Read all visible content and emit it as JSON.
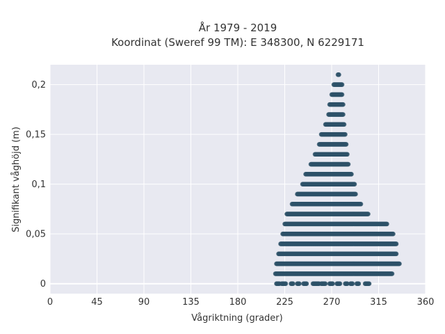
{
  "chart_data": {
    "type": "scatter",
    "title_line1": "År 1979 - 2019",
    "title_line2": "Koordinat (Sweref 99 TM): E 348300, N 6229171",
    "xlabel": "Vågriktning (grader)",
    "ylabel": "Signifikant våghöjd (m)",
    "xlim": [
      0,
      360
    ],
    "ylim": [
      -0.01,
      0.22
    ],
    "xticks": [
      0,
      45,
      90,
      135,
      180,
      225,
      270,
      315,
      360
    ],
    "xtick_labels": [
      "0",
      "45",
      "90",
      "135",
      "180",
      "225",
      "270",
      "315",
      "360"
    ],
    "yticks": [
      0,
      0.05,
      0.1,
      0.15,
      0.2
    ],
    "ytick_labels": [
      "0",
      "0,05",
      "0,1",
      "0,15",
      "0,2"
    ],
    "grid": true,
    "marker_color": "#2e5168",
    "plot_bg": "#e8e9f1",
    "bands": [
      {
        "y": 0.0,
        "ranges": [
          [
            217,
            220
          ],
          [
            222,
            226
          ],
          [
            231,
            233
          ],
          [
            237,
            239
          ],
          [
            243,
            246
          ],
          [
            252,
            258
          ],
          [
            260,
            264
          ],
          [
            268,
            271
          ],
          [
            275,
            278
          ],
          [
            283,
            285
          ],
          [
            288,
            290
          ],
          [
            294,
            296
          ],
          [
            302,
            306
          ]
        ]
      },
      {
        "y": 0.01,
        "ranges": [
          [
            216,
            328
          ]
        ]
      },
      {
        "y": 0.02,
        "ranges": [
          [
            217,
            335
          ]
        ]
      },
      {
        "y": 0.03,
        "ranges": [
          [
            219,
            332
          ]
        ]
      },
      {
        "y": 0.04,
        "ranges": [
          [
            221,
            332
          ]
        ]
      },
      {
        "y": 0.05,
        "ranges": [
          [
            223,
            329
          ]
        ]
      },
      {
        "y": 0.06,
        "ranges": [
          [
            225,
            323
          ]
        ]
      },
      {
        "y": 0.07,
        "ranges": [
          [
            227,
            305
          ]
        ]
      },
      {
        "y": 0.08,
        "ranges": [
          [
            232,
            298
          ]
        ]
      },
      {
        "y": 0.09,
        "ranges": [
          [
            237,
            293
          ]
        ]
      },
      {
        "y": 0.1,
        "ranges": [
          [
            242,
            292
          ]
        ]
      },
      {
        "y": 0.11,
        "ranges": [
          [
            245,
            289
          ]
        ]
      },
      {
        "y": 0.12,
        "ranges": [
          [
            250,
            286
          ]
        ]
      },
      {
        "y": 0.13,
        "ranges": [
          [
            254,
            285
          ]
        ]
      },
      {
        "y": 0.14,
        "ranges": [
          [
            258,
            284
          ]
        ]
      },
      {
        "y": 0.15,
        "ranges": [
          [
            260,
            283
          ]
        ]
      },
      {
        "y": 0.16,
        "ranges": [
          [
            264,
            282
          ]
        ]
      },
      {
        "y": 0.17,
        "ranges": [
          [
            267,
            281
          ]
        ]
      },
      {
        "y": 0.18,
        "ranges": [
          [
            268,
            281
          ]
        ]
      },
      {
        "y": 0.19,
        "ranges": [
          [
            270,
            280
          ]
        ]
      },
      {
        "y": 0.2,
        "ranges": [
          [
            272,
            280
          ]
        ]
      },
      {
        "y": 0.21,
        "ranges": [
          [
            276,
            277
          ]
        ]
      }
    ]
  }
}
